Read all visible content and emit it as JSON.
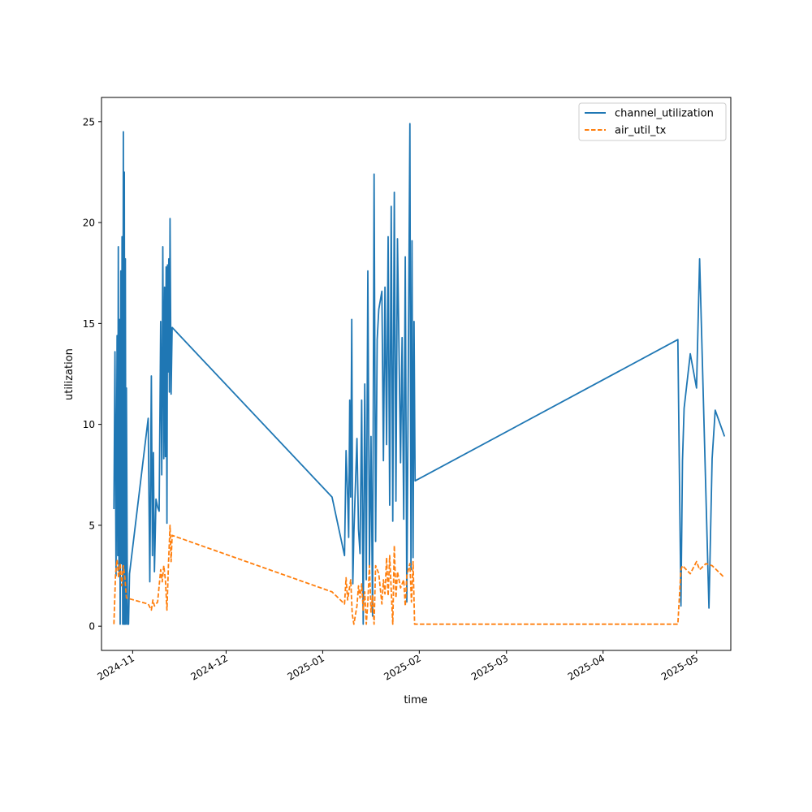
{
  "chart_data": {
    "type": "line",
    "title": "",
    "xlabel": "time",
    "ylabel": "utilization",
    "x_axis_kind": "date",
    "xlim": [
      "2024-10-22",
      "2025-05-12"
    ],
    "ylim": [
      -1.2,
      26.2
    ],
    "x_ticks": [
      {
        "value": "2024-11-01",
        "label": "2024-11"
      },
      {
        "value": "2024-12-01",
        "label": "2024-12"
      },
      {
        "value": "2025-01-01",
        "label": "2025-01"
      },
      {
        "value": "2025-02-01",
        "label": "2025-02"
      },
      {
        "value": "2025-03-01",
        "label": "2025-03"
      },
      {
        "value": "2025-04-01",
        "label": "2025-04"
      },
      {
        "value": "2025-05-01",
        "label": "2025-05"
      }
    ],
    "y_ticks": [
      0,
      5,
      10,
      15,
      20,
      25
    ],
    "grid": false,
    "legend_position": "upper-right",
    "series": [
      {
        "name": "channel_utilization",
        "color": "#1f77b4",
        "style": "solid",
        "points": [
          [
            "2024-10-26",
            5.8
          ],
          [
            "2024-10-26",
            13.6
          ],
          [
            "2024-10-26",
            2.5
          ],
          [
            "2024-10-27",
            14.4
          ],
          [
            "2024-10-27",
            3.5
          ],
          [
            "2024-10-27",
            18.8
          ],
          [
            "2024-10-27",
            2.7
          ],
          [
            "2024-10-27",
            15.2
          ],
          [
            "2024-10-28",
            0.1
          ],
          [
            "2024-10-28",
            17.6
          ],
          [
            "2024-10-28",
            3.1
          ],
          [
            "2024-10-28",
            19.3
          ],
          [
            "2024-10-28",
            0.1
          ],
          [
            "2024-10-29",
            24.5
          ],
          [
            "2024-10-29",
            0.1
          ],
          [
            "2024-10-29",
            22.5
          ],
          [
            "2024-10-29",
            0.1
          ],
          [
            "2024-10-29",
            18.2
          ],
          [
            "2024-10-29",
            0.1
          ],
          [
            "2024-10-30",
            11.8
          ],
          [
            "2024-10-30",
            0.1
          ],
          [
            "2024-10-30",
            0.1
          ],
          [
            "2024-10-31",
            2.6
          ],
          [
            "2024-11-06",
            10.3
          ],
          [
            "2024-11-06",
            2.2
          ],
          [
            "2024-11-07",
            12.4
          ],
          [
            "2024-11-07",
            3.5
          ],
          [
            "2024-11-07",
            8.6
          ],
          [
            "2024-11-08",
            2.7
          ],
          [
            "2024-11-08",
            6.3
          ],
          [
            "2024-11-09",
            5.9
          ],
          [
            "2024-11-09",
            5.7
          ],
          [
            "2024-11-10",
            15.1
          ],
          [
            "2024-11-10",
            7.5
          ],
          [
            "2024-11-10",
            18.8
          ],
          [
            "2024-11-11",
            8.3
          ],
          [
            "2024-11-11",
            16.8
          ],
          [
            "2024-11-11",
            8.4
          ],
          [
            "2024-11-11",
            17.8
          ],
          [
            "2024-11-12",
            5.1
          ],
          [
            "2024-11-12",
            17.9
          ],
          [
            "2024-11-12",
            12.6
          ],
          [
            "2024-11-12",
            18.2
          ],
          [
            "2024-11-12",
            11.6
          ],
          [
            "2024-11-13",
            20.2
          ],
          [
            "2024-11-13",
            11.5
          ],
          [
            "2024-11-13",
            14.8
          ],
          [
            "2025-01-04",
            6.4
          ],
          [
            "2025-01-08",
            3.5
          ],
          [
            "2025-01-08",
            8.7
          ],
          [
            "2025-01-09",
            6.5
          ],
          [
            "2025-01-09",
            4.4
          ],
          [
            "2025-01-09",
            11.2
          ],
          [
            "2025-01-10",
            6.4
          ],
          [
            "2025-01-10",
            15.2
          ],
          [
            "2025-01-10",
            2.1
          ],
          [
            "2025-01-11",
            4.6
          ],
          [
            "2025-01-12",
            9.3
          ],
          [
            "2025-01-12",
            4.8
          ],
          [
            "2025-01-13",
            3.6
          ],
          [
            "2025-01-13",
            11.2
          ],
          [
            "2025-01-14",
            0.1
          ],
          [
            "2025-01-14",
            12.0
          ],
          [
            "2025-01-15",
            2.3
          ],
          [
            "2025-01-15",
            17.6
          ],
          [
            "2025-01-16",
            3.0
          ],
          [
            "2025-01-16",
            9.4
          ],
          [
            "2025-01-17",
            0.5
          ],
          [
            "2025-01-17",
            22.4
          ],
          [
            "2025-01-18",
            4.2
          ],
          [
            "2025-01-18",
            14.2
          ],
          [
            "2025-01-19",
            15.7
          ],
          [
            "2025-01-20",
            16.6
          ],
          [
            "2025-01-20",
            8.2
          ],
          [
            "2025-01-21",
            16.8
          ],
          [
            "2025-01-21",
            9.0
          ],
          [
            "2025-01-22",
            19.3
          ],
          [
            "2025-01-22",
            6.0
          ],
          [
            "2025-01-23",
            20.8
          ],
          [
            "2025-01-23",
            5.2
          ],
          [
            "2025-01-24",
            21.5
          ],
          [
            "2025-01-24",
            6.2
          ],
          [
            "2025-01-25",
            19.2
          ],
          [
            "2025-01-26",
            8.1
          ],
          [
            "2025-01-26",
            14.3
          ],
          [
            "2025-01-27",
            5.3
          ],
          [
            "2025-01-27",
            18.3
          ],
          [
            "2025-01-28",
            1.2
          ],
          [
            "2025-01-29",
            24.9
          ],
          [
            "2025-01-29",
            2.8
          ],
          [
            "2025-01-29",
            19.1
          ],
          [
            "2025-01-30",
            3.4
          ],
          [
            "2025-01-30",
            15.1
          ],
          [
            "2025-01-30",
            7.2
          ],
          [
            "2025-04-25",
            14.2
          ],
          [
            "2025-04-26",
            1.0
          ],
          [
            "2025-04-26",
            8.2
          ],
          [
            "2025-04-27",
            10.8
          ],
          [
            "2025-04-29",
            13.5
          ],
          [
            "2025-05-01",
            11.8
          ],
          [
            "2025-05-02",
            18.2
          ],
          [
            "2025-05-05",
            0.9
          ],
          [
            "2025-05-06",
            8.3
          ],
          [
            "2025-05-07",
            10.7
          ],
          [
            "2025-05-10",
            9.4
          ]
        ]
      },
      {
        "name": "air_util_tx",
        "color": "#ff7f0e",
        "style": "dashed",
        "points": [
          [
            "2024-10-26",
            0.1
          ],
          [
            "2024-10-26",
            2.6
          ],
          [
            "2024-10-27",
            3.3
          ],
          [
            "2024-10-27",
            2.4
          ],
          [
            "2024-10-28",
            3.1
          ],
          [
            "2024-10-28",
            2.0
          ],
          [
            "2024-10-29",
            3.0
          ],
          [
            "2024-10-29",
            2.4
          ],
          [
            "2024-10-30",
            1.4
          ],
          [
            "2024-11-06",
            1.1
          ],
          [
            "2024-11-07",
            0.8
          ],
          [
            "2024-11-07",
            1.3
          ],
          [
            "2024-11-08",
            1.0
          ],
          [
            "2024-11-09",
            1.2
          ],
          [
            "2024-11-10",
            2.8
          ],
          [
            "2024-11-10",
            2.2
          ],
          [
            "2024-11-11",
            3.0
          ],
          [
            "2024-11-11",
            2.3
          ],
          [
            "2024-11-12",
            0.8
          ],
          [
            "2024-11-12",
            3.1
          ],
          [
            "2024-11-13",
            5.0
          ],
          [
            "2024-11-13",
            3.2
          ],
          [
            "2024-11-13",
            4.5
          ],
          [
            "2025-01-04",
            1.7
          ],
          [
            "2025-01-08",
            1.1
          ],
          [
            "2025-01-08",
            2.4
          ],
          [
            "2025-01-09",
            1.3
          ],
          [
            "2025-01-10",
            2.3
          ],
          [
            "2025-01-10",
            0.6
          ],
          [
            "2025-01-11",
            0.1
          ],
          [
            "2025-01-12",
            1.0
          ],
          [
            "2025-01-12",
            2.0
          ],
          [
            "2025-01-13",
            1.4
          ],
          [
            "2025-01-13",
            2.1
          ],
          [
            "2025-01-14",
            0.8
          ],
          [
            "2025-01-14",
            1.7
          ],
          [
            "2025-01-15",
            0.1
          ],
          [
            "2025-01-15",
            1.2
          ],
          [
            "2025-01-16",
            3.0
          ],
          [
            "2025-01-16",
            0.7
          ],
          [
            "2025-01-17",
            1.5
          ],
          [
            "2025-01-17",
            0.1
          ],
          [
            "2025-01-18",
            3.0
          ],
          [
            "2025-01-19",
            2.6
          ],
          [
            "2025-01-20",
            1.1
          ],
          [
            "2025-01-20",
            2.3
          ],
          [
            "2025-01-21",
            1.6
          ],
          [
            "2025-01-21",
            3.4
          ],
          [
            "2025-01-22",
            1.5
          ],
          [
            "2025-01-22",
            3.5
          ],
          [
            "2025-01-23",
            1.8
          ],
          [
            "2025-01-23",
            0.1
          ],
          [
            "2025-01-24",
            4.0
          ],
          [
            "2025-01-24",
            1.4
          ],
          [
            "2025-01-25",
            2.7
          ],
          [
            "2025-01-26",
            1.9
          ],
          [
            "2025-01-27",
            2.3
          ],
          [
            "2025-01-27",
            1.0
          ],
          [
            "2025-01-28",
            2.5
          ],
          [
            "2025-01-29",
            3.1
          ],
          [
            "2025-01-29",
            1.2
          ],
          [
            "2025-01-30",
            3.2
          ],
          [
            "2025-01-30",
            0.1
          ],
          [
            "2025-04-25",
            0.1
          ],
          [
            "2025-04-26",
            2.8
          ],
          [
            "2025-04-26",
            3.0
          ],
          [
            "2025-04-29",
            2.6
          ],
          [
            "2025-05-01",
            3.2
          ],
          [
            "2025-05-02",
            2.8
          ],
          [
            "2025-05-04",
            3.1
          ],
          [
            "2025-05-06",
            3.0
          ],
          [
            "2025-05-10",
            2.4
          ]
        ]
      }
    ]
  }
}
